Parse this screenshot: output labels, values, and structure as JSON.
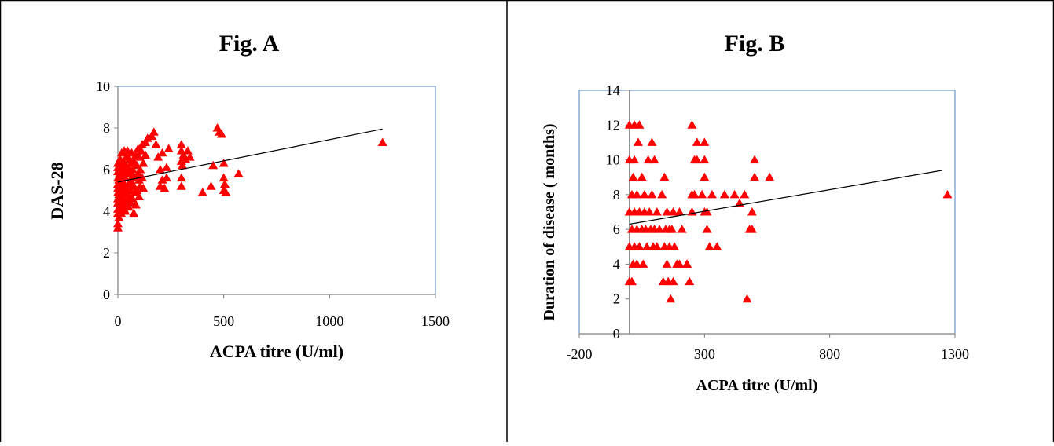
{
  "figures": [
    {
      "title": "Fig.  A",
      "xlabel": "ACPA titre (U/ml)",
      "ylabel": "DAS-28"
    },
    {
      "title": "Fig.  B",
      "xlabel": "ACPA titre (U/ml)",
      "ylabel": "Duration of disease ( months)"
    }
  ],
  "colors": {
    "marker": "#ff0000",
    "trend": "#000000",
    "plot_border": "#4f81bd",
    "frame": "#000000"
  },
  "chart_data": [
    {
      "type": "scatter",
      "title": "Fig.  A",
      "xlabel": "ACPA titre (U/ml)",
      "ylabel": "DAS-28",
      "xlim": [
        0,
        1500
      ],
      "ylim": [
        0,
        10
      ],
      "xticks": [
        0,
        500,
        1000,
        1500
      ],
      "yticks": [
        0,
        2,
        4,
        6,
        8,
        10
      ],
      "marker": "triangle",
      "trendline": [
        [
          0,
          5.4
        ],
        [
          1250,
          7.95
        ]
      ],
      "points": [
        [
          0,
          3.2
        ],
        [
          0,
          3.4
        ],
        [
          0,
          3.9
        ],
        [
          0,
          4.1
        ],
        [
          0,
          4.4
        ],
        [
          0,
          4.6
        ],
        [
          0,
          4.9
        ],
        [
          0,
          5.1
        ],
        [
          0,
          5.3
        ],
        [
          0,
          5.6
        ],
        [
          0,
          5.9
        ],
        [
          0,
          6.1
        ],
        [
          0,
          6.3
        ],
        [
          5,
          3.7
        ],
        [
          5,
          4.8
        ],
        [
          5,
          5.5
        ],
        [
          5,
          6.0
        ],
        [
          8,
          4.2
        ],
        [
          8,
          5.2
        ],
        [
          8,
          5.8
        ],
        [
          10,
          4.0
        ],
        [
          10,
          6.5
        ],
        [
          12,
          4.6
        ],
        [
          12,
          5.0
        ],
        [
          15,
          3.9
        ],
        [
          15,
          5.3
        ],
        [
          15,
          6.2
        ],
        [
          18,
          4.4
        ],
        [
          18,
          5.7
        ],
        [
          18,
          6.8
        ],
        [
          20,
          4.1
        ],
        [
          20,
          5.0
        ],
        [
          20,
          6.0
        ],
        [
          25,
          4.6
        ],
        [
          25,
          5.4
        ],
        [
          25,
          6.4
        ],
        [
          28,
          4.9
        ],
        [
          28,
          5.9
        ],
        [
          30,
          4.3
        ],
        [
          30,
          5.2
        ],
        [
          30,
          6.9
        ],
        [
          35,
          4.0
        ],
        [
          35,
          5.6
        ],
        [
          35,
          6.2
        ],
        [
          40,
          4.8
        ],
        [
          40,
          5.1
        ],
        [
          40,
          6.6
        ],
        [
          45,
          4.5
        ],
        [
          45,
          5.8
        ],
        [
          45,
          6.9
        ],
        [
          50,
          4.2
        ],
        [
          50,
          5.3
        ],
        [
          50,
          6.1
        ],
        [
          55,
          4.7
        ],
        [
          55,
          5.9
        ],
        [
          55,
          6.5
        ],
        [
          60,
          4.4
        ],
        [
          60,
          5.0
        ],
        [
          60,
          6.3
        ],
        [
          65,
          5.4
        ],
        [
          65,
          6.8
        ],
        [
          70,
          4.6
        ],
        [
          70,
          5.7
        ],
        [
          70,
          6.0
        ],
        [
          75,
          3.9
        ],
        [
          75,
          5.2
        ],
        [
          75,
          6.4
        ],
        [
          80,
          4.9
        ],
        [
          80,
          5.6
        ],
        [
          85,
          4.3
        ],
        [
          85,
          6.7
        ],
        [
          90,
          5.0
        ],
        [
          90,
          6.2
        ],
        [
          95,
          5.8
        ],
        [
          95,
          7.0
        ],
        [
          100,
          4.7
        ],
        [
          100,
          5.5
        ],
        [
          100,
          6.6
        ],
        [
          105,
          5.2
        ],
        [
          105,
          6.0
        ],
        [
          110,
          6.9
        ],
        [
          115,
          5.6
        ],
        [
          115,
          7.2
        ],
        [
          120,
          5.1
        ],
        [
          120,
          6.3
        ],
        [
          130,
          6.7
        ],
        [
          130,
          7.3
        ],
        [
          140,
          7.5
        ],
        [
          160,
          7.6
        ],
        [
          170,
          7.8
        ],
        [
          180,
          7.2
        ],
        [
          190,
          6.6
        ],
        [
          200,
          5.2
        ],
        [
          200,
          6.0
        ],
        [
          210,
          5.5
        ],
        [
          210,
          6.8
        ],
        [
          220,
          5.1
        ],
        [
          230,
          5.6
        ],
        [
          230,
          6.1
        ],
        [
          240,
          7.0
        ],
        [
          300,
          5.2
        ],
        [
          300,
          5.6
        ],
        [
          300,
          6.4
        ],
        [
          300,
          6.9
        ],
        [
          300,
          7.2
        ],
        [
          305,
          6.2
        ],
        [
          310,
          6.7
        ],
        [
          320,
          6.5
        ],
        [
          330,
          6.9
        ],
        [
          340,
          6.6
        ],
        [
          400,
          4.9
        ],
        [
          440,
          5.2
        ],
        [
          450,
          6.2
        ],
        [
          470,
          8.0
        ],
        [
          480,
          7.8
        ],
        [
          490,
          7.7
        ],
        [
          500,
          6.3
        ],
        [
          500,
          5.6
        ],
        [
          500,
          5.0
        ],
        [
          505,
          5.3
        ],
        [
          510,
          4.9
        ],
        [
          570,
          5.8
        ],
        [
          1250,
          7.3
        ]
      ]
    },
    {
      "type": "scatter",
      "title": "Fig.  B",
      "xlabel": "ACPA titre (U/ml)",
      "ylabel": "Duration of disease ( months)",
      "xlim": [
        -200,
        1300
      ],
      "ylim": [
        0,
        14
      ],
      "xticks": [
        -200,
        300,
        800,
        1300
      ],
      "yticks": [
        0,
        2,
        4,
        6,
        8,
        10,
        12,
        14
      ],
      "marker": "triangle",
      "trendline": [
        [
          0,
          6.3
        ],
        [
          1250,
          9.4
        ]
      ],
      "points": [
        [
          0,
          3
        ],
        [
          0,
          5
        ],
        [
          0,
          7
        ],
        [
          0,
          10
        ],
        [
          0,
          12
        ],
        [
          10,
          3
        ],
        [
          10,
          6
        ],
        [
          10,
          8
        ],
        [
          15,
          4
        ],
        [
          15,
          9
        ],
        [
          20,
          5
        ],
        [
          20,
          7
        ],
        [
          20,
          10
        ],
        [
          20,
          12
        ],
        [
          30,
          4
        ],
        [
          30,
          6
        ],
        [
          30,
          8
        ],
        [
          35,
          11
        ],
        [
          40,
          5
        ],
        [
          40,
          7
        ],
        [
          40,
          12
        ],
        [
          50,
          6
        ],
        [
          50,
          9
        ],
        [
          55,
          4
        ],
        [
          60,
          7
        ],
        [
          60,
          8
        ],
        [
          65,
          6
        ],
        [
          70,
          5
        ],
        [
          75,
          10
        ],
        [
          80,
          7
        ],
        [
          85,
          6
        ],
        [
          90,
          8
        ],
        [
          90,
          11
        ],
        [
          95,
          5
        ],
        [
          100,
          10
        ],
        [
          100,
          6
        ],
        [
          110,
          7
        ],
        [
          110,
          5
        ],
        [
          120,
          6
        ],
        [
          130,
          8
        ],
        [
          135,
          3
        ],
        [
          140,
          9
        ],
        [
          140,
          5
        ],
        [
          145,
          6
        ],
        [
          150,
          4
        ],
        [
          150,
          7
        ],
        [
          155,
          3
        ],
        [
          160,
          5
        ],
        [
          160,
          6
        ],
        [
          165,
          2
        ],
        [
          170,
          6
        ],
        [
          175,
          7
        ],
        [
          175,
          3
        ],
        [
          180,
          5
        ],
        [
          190,
          4
        ],
        [
          200,
          7
        ],
        [
          200,
          4
        ],
        [
          210,
          6
        ],
        [
          230,
          4
        ],
        [
          250,
          7
        ],
        [
          250,
          8
        ],
        [
          260,
          10
        ],
        [
          260,
          8
        ],
        [
          270,
          11
        ],
        [
          270,
          10
        ],
        [
          290,
          8
        ],
        [
          250,
          12
        ],
        [
          240,
          3
        ],
        [
          230,
          4
        ],
        [
          300,
          11
        ],
        [
          300,
          9
        ],
        [
          300,
          10
        ],
        [
          300,
          7
        ],
        [
          310,
          7
        ],
        [
          310,
          6
        ],
        [
          320,
          5
        ],
        [
          330,
          8
        ],
        [
          350,
          5
        ],
        [
          380,
          8
        ],
        [
          420,
          8
        ],
        [
          440,
          7.5
        ],
        [
          460,
          8
        ],
        [
          470,
          2
        ],
        [
          480,
          6
        ],
        [
          490,
          6
        ],
        [
          490,
          7
        ],
        [
          500,
          10
        ],
        [
          500,
          9
        ],
        [
          560,
          9
        ],
        [
          1270,
          8
        ]
      ]
    }
  ]
}
